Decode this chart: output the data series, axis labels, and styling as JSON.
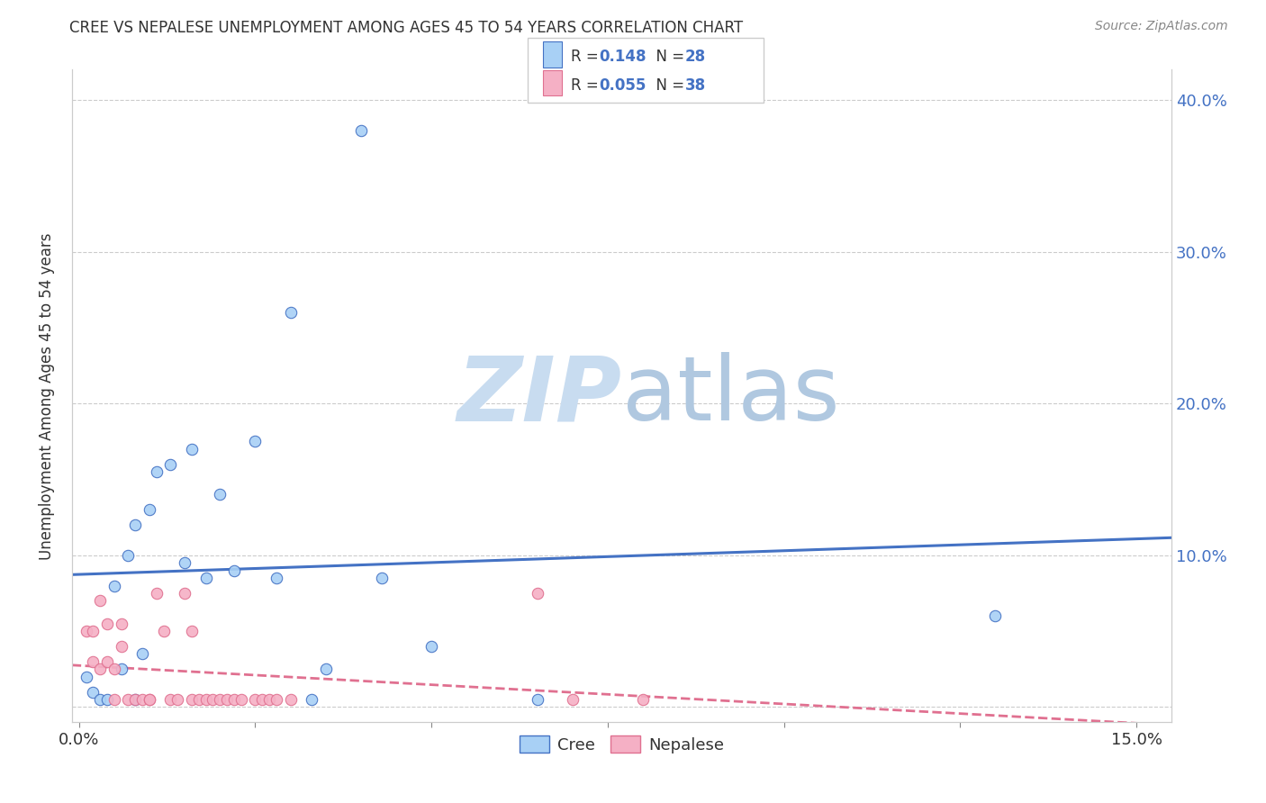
{
  "title": "CREE VS NEPALESE UNEMPLOYMENT AMONG AGES 45 TO 54 YEARS CORRELATION CHART",
  "source": "Source: ZipAtlas.com",
  "ylabel": "Unemployment Among Ages 45 to 54 years",
  "xlim": [
    -0.001,
    0.155
  ],
  "ylim": [
    -0.01,
    0.42
  ],
  "xticks": [
    0.0,
    0.025,
    0.05,
    0.075,
    0.1,
    0.125,
    0.15
  ],
  "xticklabels": [
    "0.0%",
    "",
    "",
    "",
    "",
    "",
    "15.0%"
  ],
  "yticks": [
    0.0,
    0.1,
    0.2,
    0.3,
    0.4
  ],
  "yticklabels_right": [
    "",
    "10.0%",
    "20.0%",
    "30.0%",
    "40.0%"
  ],
  "cree_color": "#A8D0F5",
  "nepalese_color": "#F5B0C5",
  "cree_line_color": "#4472C4",
  "nepalese_line_color": "#E07090",
  "cree_R": 0.148,
  "cree_N": 28,
  "nepalese_R": 0.055,
  "nepalese_N": 38,
  "watermark_zip": "ZIP",
  "watermark_atlas": "atlas",
  "cree_x": [
    0.001,
    0.002,
    0.003,
    0.004,
    0.005,
    0.006,
    0.007,
    0.008,
    0.008,
    0.009,
    0.01,
    0.011,
    0.013,
    0.015,
    0.016,
    0.018,
    0.02,
    0.022,
    0.025,
    0.028,
    0.03,
    0.033,
    0.035,
    0.04,
    0.043,
    0.05,
    0.065,
    0.13
  ],
  "cree_y": [
    0.02,
    0.01,
    0.005,
    0.005,
    0.08,
    0.025,
    0.1,
    0.12,
    0.005,
    0.035,
    0.13,
    0.155,
    0.16,
    0.095,
    0.17,
    0.085,
    0.14,
    0.09,
    0.175,
    0.085,
    0.26,
    0.005,
    0.025,
    0.38,
    0.085,
    0.04,
    0.005,
    0.06
  ],
  "nepalese_x": [
    0.001,
    0.002,
    0.002,
    0.003,
    0.003,
    0.004,
    0.004,
    0.005,
    0.005,
    0.006,
    0.006,
    0.007,
    0.008,
    0.009,
    0.01,
    0.01,
    0.011,
    0.012,
    0.013,
    0.014,
    0.015,
    0.016,
    0.016,
    0.017,
    0.018,
    0.019,
    0.02,
    0.021,
    0.022,
    0.023,
    0.025,
    0.026,
    0.027,
    0.028,
    0.03,
    0.065,
    0.07,
    0.08
  ],
  "nepalese_y": [
    0.05,
    0.05,
    0.03,
    0.07,
    0.025,
    0.055,
    0.03,
    0.025,
    0.005,
    0.04,
    0.055,
    0.005,
    0.005,
    0.005,
    0.005,
    0.005,
    0.075,
    0.05,
    0.005,
    0.005,
    0.075,
    0.05,
    0.005,
    0.005,
    0.005,
    0.005,
    0.005,
    0.005,
    0.005,
    0.005,
    0.005,
    0.005,
    0.005,
    0.005,
    0.005,
    0.075,
    0.005,
    0.005
  ],
  "background_color": "#FFFFFF",
  "grid_color": "#CCCCCC"
}
